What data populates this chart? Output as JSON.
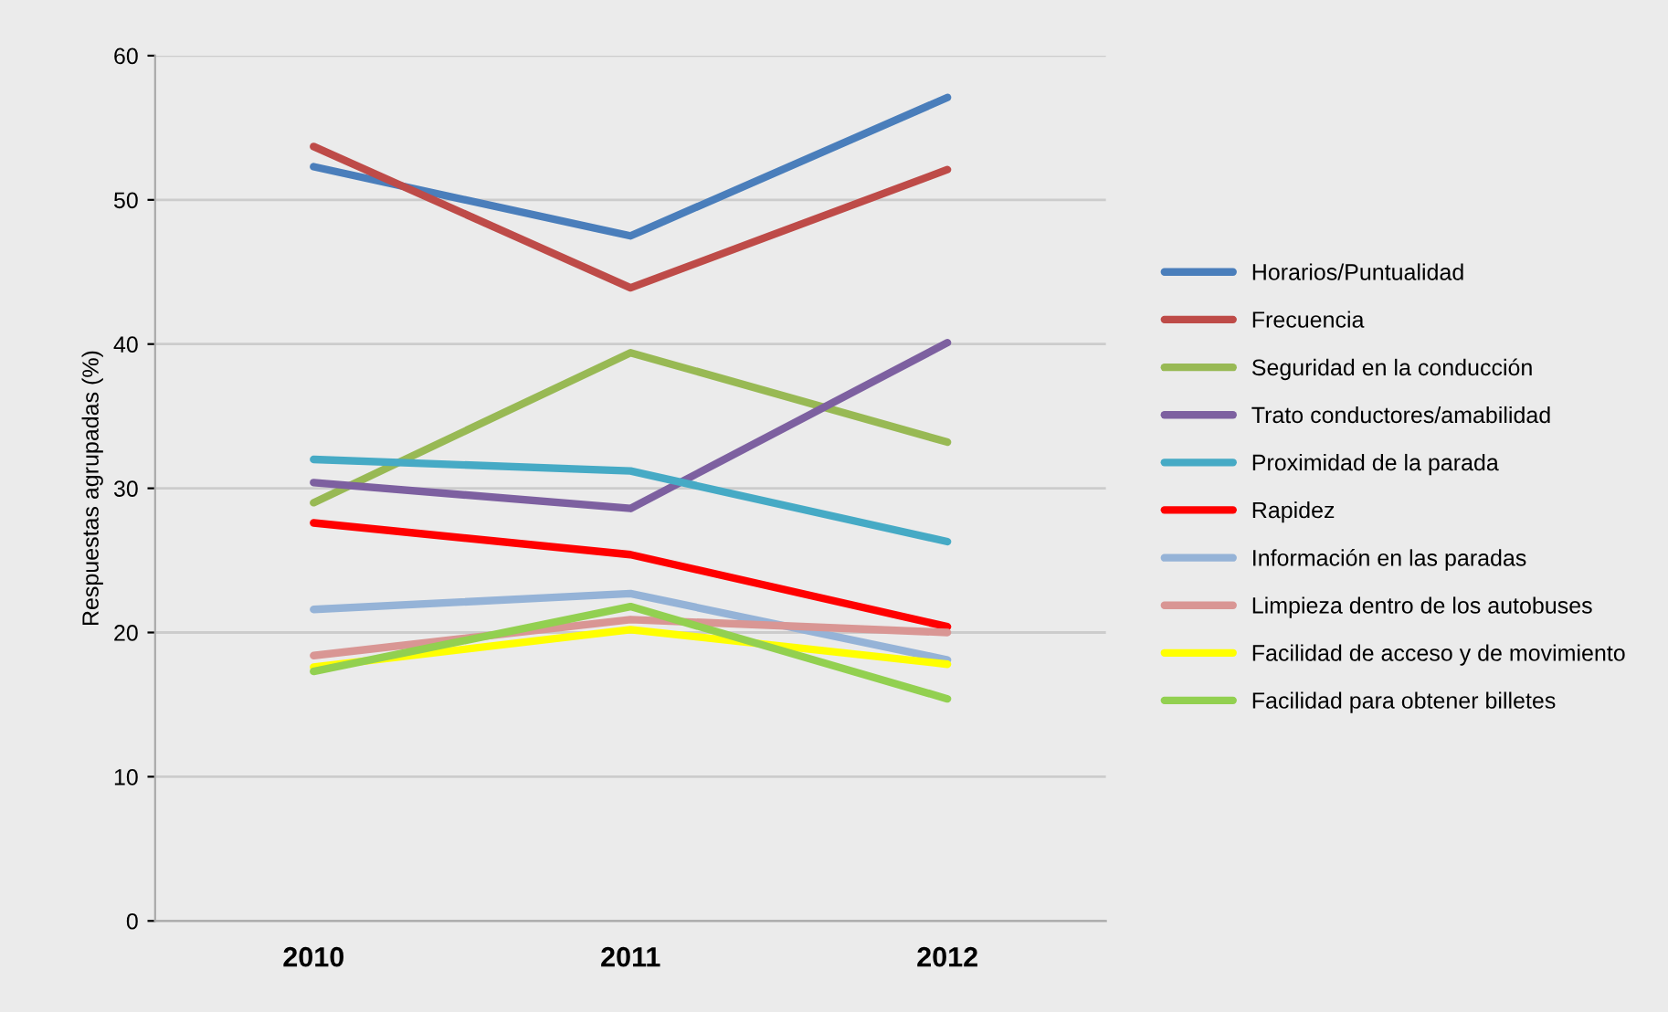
{
  "chart_data": {
    "type": "line",
    "ylabel": "Respuestas agrupadas (%)",
    "categories": [
      "2010",
      "2011",
      "2012"
    ],
    "series": [
      {
        "name": "Horarios/Puntualidad",
        "color": "#4a7ebb",
        "values": [
          52.3,
          47.5,
          57.1
        ]
      },
      {
        "name": "Frecuencia",
        "color": "#be4b48",
        "values": [
          53.7,
          43.9,
          52.1
        ]
      },
      {
        "name": "Seguridad en la conducción",
        "color": "#98b954",
        "values": [
          29.0,
          39.4,
          33.2
        ]
      },
      {
        "name": "Trato conductores/amabilidad",
        "color": "#7d60a0",
        "values": [
          30.4,
          28.6,
          40.1
        ]
      },
      {
        "name": "Proximidad de la parada",
        "color": "#46aac5",
        "values": [
          32.0,
          31.2,
          26.3
        ]
      },
      {
        "name": "Rapidez",
        "color": "#ff0000",
        "values": [
          27.6,
          25.4,
          20.4
        ]
      },
      {
        "name": "Información en las paradas",
        "color": "#95b3d7",
        "values": [
          21.6,
          22.7,
          18.1
        ]
      },
      {
        "name": "Limpieza dentro de los autobuses",
        "color": "#d99694",
        "values": [
          18.4,
          20.9,
          20.0
        ]
      },
      {
        "name": "Facilidad de acceso y de movimiento",
        "color": "#ffff00",
        "values": [
          17.6,
          20.2,
          17.8
        ]
      },
      {
        "name": "Facilidad para obtener billetes",
        "color": "#92d050",
        "values": [
          17.3,
          21.8,
          15.4
        ]
      }
    ],
    "ylim": [
      0,
      60
    ],
    "yticks": [
      0,
      10,
      20,
      30,
      40,
      50,
      60
    ],
    "grid": "y",
    "legend": "right",
    "marker": "none",
    "line_style": "solid"
  }
}
